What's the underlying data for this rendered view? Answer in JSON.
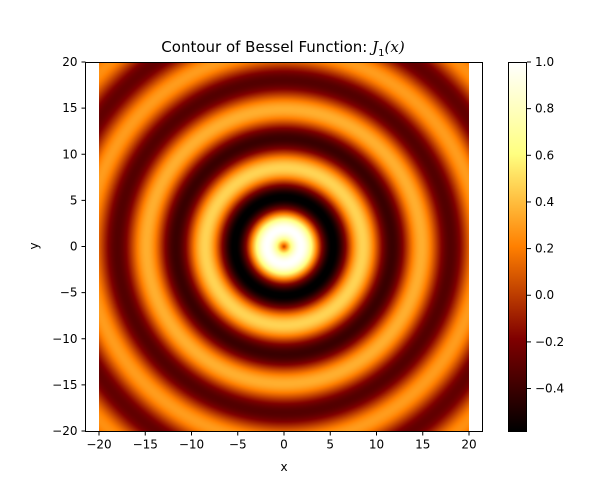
{
  "chart_data": {
    "type": "heatmap",
    "title": "Contour of Bessel Function: ",
    "title_math_symbol": "J",
    "title_math_sub": "1",
    "title_math_arg": "(x)",
    "xlabel": "x",
    "ylabel": "y",
    "function": "J1(sqrt(x^2 + y^2))",
    "xlim": [
      -20,
      20
    ],
    "ylim": [
      -20,
      20
    ],
    "xticks": [
      -20,
      -15,
      -10,
      -5,
      0,
      5,
      10,
      15,
      20
    ],
    "yticks": [
      -20,
      -15,
      -10,
      -5,
      0,
      5,
      10,
      15,
      20
    ],
    "colormap": "afmhot",
    "colorbar": {
      "range": [
        -0.582,
        1.0
      ],
      "ticks": [
        -0.4,
        -0.2,
        0.0,
        0.2,
        0.4,
        0.6,
        0.8,
        1.0
      ],
      "tick_labels": [
        "−0.4",
        "−0.2",
        "0.0",
        "0.2",
        "0.4",
        "0.6",
        "0.8",
        "1.0"
      ]
    },
    "grid": false
  }
}
